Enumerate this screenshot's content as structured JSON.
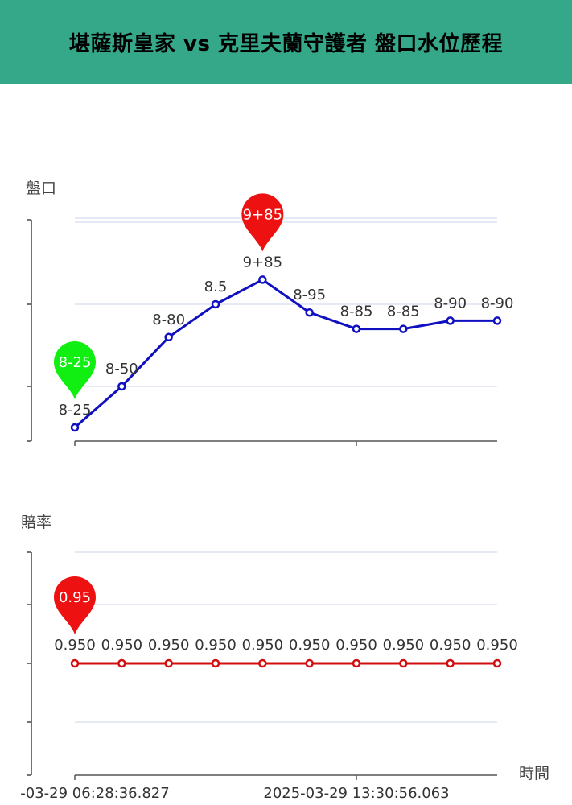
{
  "title": "堪薩斯皇家 vs 克里夫蘭守護者 盤口水位歷程",
  "chart_data": [
    {
      "type": "line",
      "ylabel": "盤口",
      "color": "#1010c0",
      "grid": true,
      "categories": [
        "8-25",
        "8-50",
        "8-80",
        "8.5",
        "9+85",
        "8-95",
        "8-85",
        "8-85",
        "8-90",
        "8-90"
      ],
      "values": [
        8.25,
        8.5,
        8.8,
        9.0,
        9.15,
        8.95,
        8.85,
        8.85,
        8.9,
        8.9
      ],
      "ylim": [
        7.65,
        9.8
      ],
      "markers": [
        {
          "type": "min",
          "index": 0,
          "label": "8-25",
          "color": "#11ee11"
        },
        {
          "type": "max",
          "index": 4,
          "label": "9+85",
          "color": "#ee1111"
        }
      ]
    },
    {
      "type": "line",
      "ylabel": "賠率",
      "xlabel": "時間",
      "color": "#d01010",
      "grid": true,
      "values": [
        0.95,
        0.95,
        0.95,
        0.95,
        0.95,
        0.95,
        0.95,
        0.95,
        0.95,
        0.95
      ],
      "labels": [
        "0.950",
        "0.950",
        "0.950",
        "0.950",
        "0.950",
        "0.950",
        "0.950",
        "0.950",
        "0.950",
        "0.950"
      ],
      "x_tick_labels": [
        "-03-29 06:28:36.827",
        "2025-03-29 13:30:56.063"
      ],
      "markers": [
        {
          "type": "max",
          "index": 0,
          "label": "0.95",
          "color": "#ee1111"
        }
      ]
    }
  ]
}
